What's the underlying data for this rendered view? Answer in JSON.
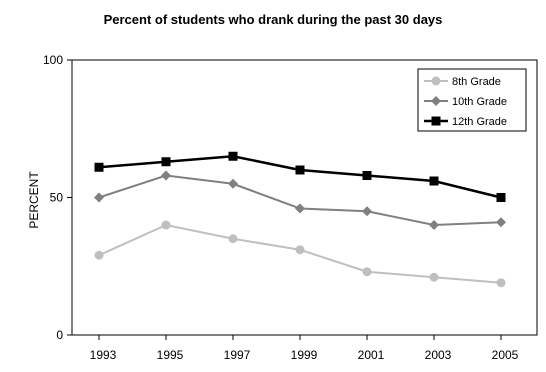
{
  "chart_data": {
    "type": "line",
    "title": "Percent of students who drank during the past 30 days",
    "ylabel": "PERCENT",
    "xlabel": "",
    "categories": [
      "1993",
      "1995",
      "1997",
      "1999",
      "2001",
      "2003",
      "2005"
    ],
    "yticks": [
      0,
      50,
      100
    ],
    "ylim": [
      0,
      100
    ],
    "grid": false,
    "legend_position": "top-right",
    "series": [
      {
        "name": "8th Grade",
        "values": [
          29,
          40,
          35,
          31,
          23,
          21,
          19
        ],
        "color": "#bfbfbf",
        "marker": "circle"
      },
      {
        "name": "10th Grade",
        "values": [
          50,
          58,
          55,
          46,
          45,
          40,
          41
        ],
        "color": "#808080",
        "marker": "diamond"
      },
      {
        "name": "12th Grade",
        "values": [
          61,
          63,
          65,
          60,
          58,
          56,
          50
        ],
        "color": "#000000",
        "marker": "square"
      }
    ]
  }
}
